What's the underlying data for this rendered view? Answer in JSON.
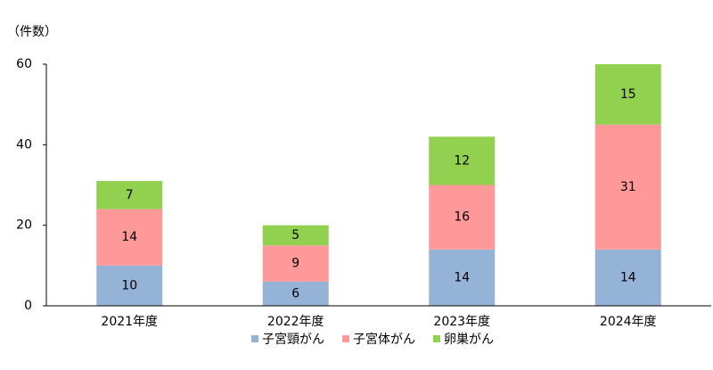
{
  "chart_data": {
    "type": "stacked_bar",
    "y_axis_label": "（件数）",
    "categories": [
      "2021年度",
      "2022年度",
      "2023年度",
      "2024年度"
    ],
    "series": [
      {
        "name": "子宮頸がん",
        "color": "#95b3d7",
        "values": [
          10,
          6,
          14,
          14
        ]
      },
      {
        "name": "子宮体がん",
        "color": "#ff9999",
        "values": [
          14,
          9,
          16,
          31
        ]
      },
      {
        "name": "卵巣がん",
        "color": "#92d050",
        "values": [
          7,
          5,
          12,
          15
        ]
      }
    ],
    "ylim": [
      0,
      60
    ],
    "yticks": [
      0,
      20,
      40,
      60
    ],
    "grid": false
  }
}
